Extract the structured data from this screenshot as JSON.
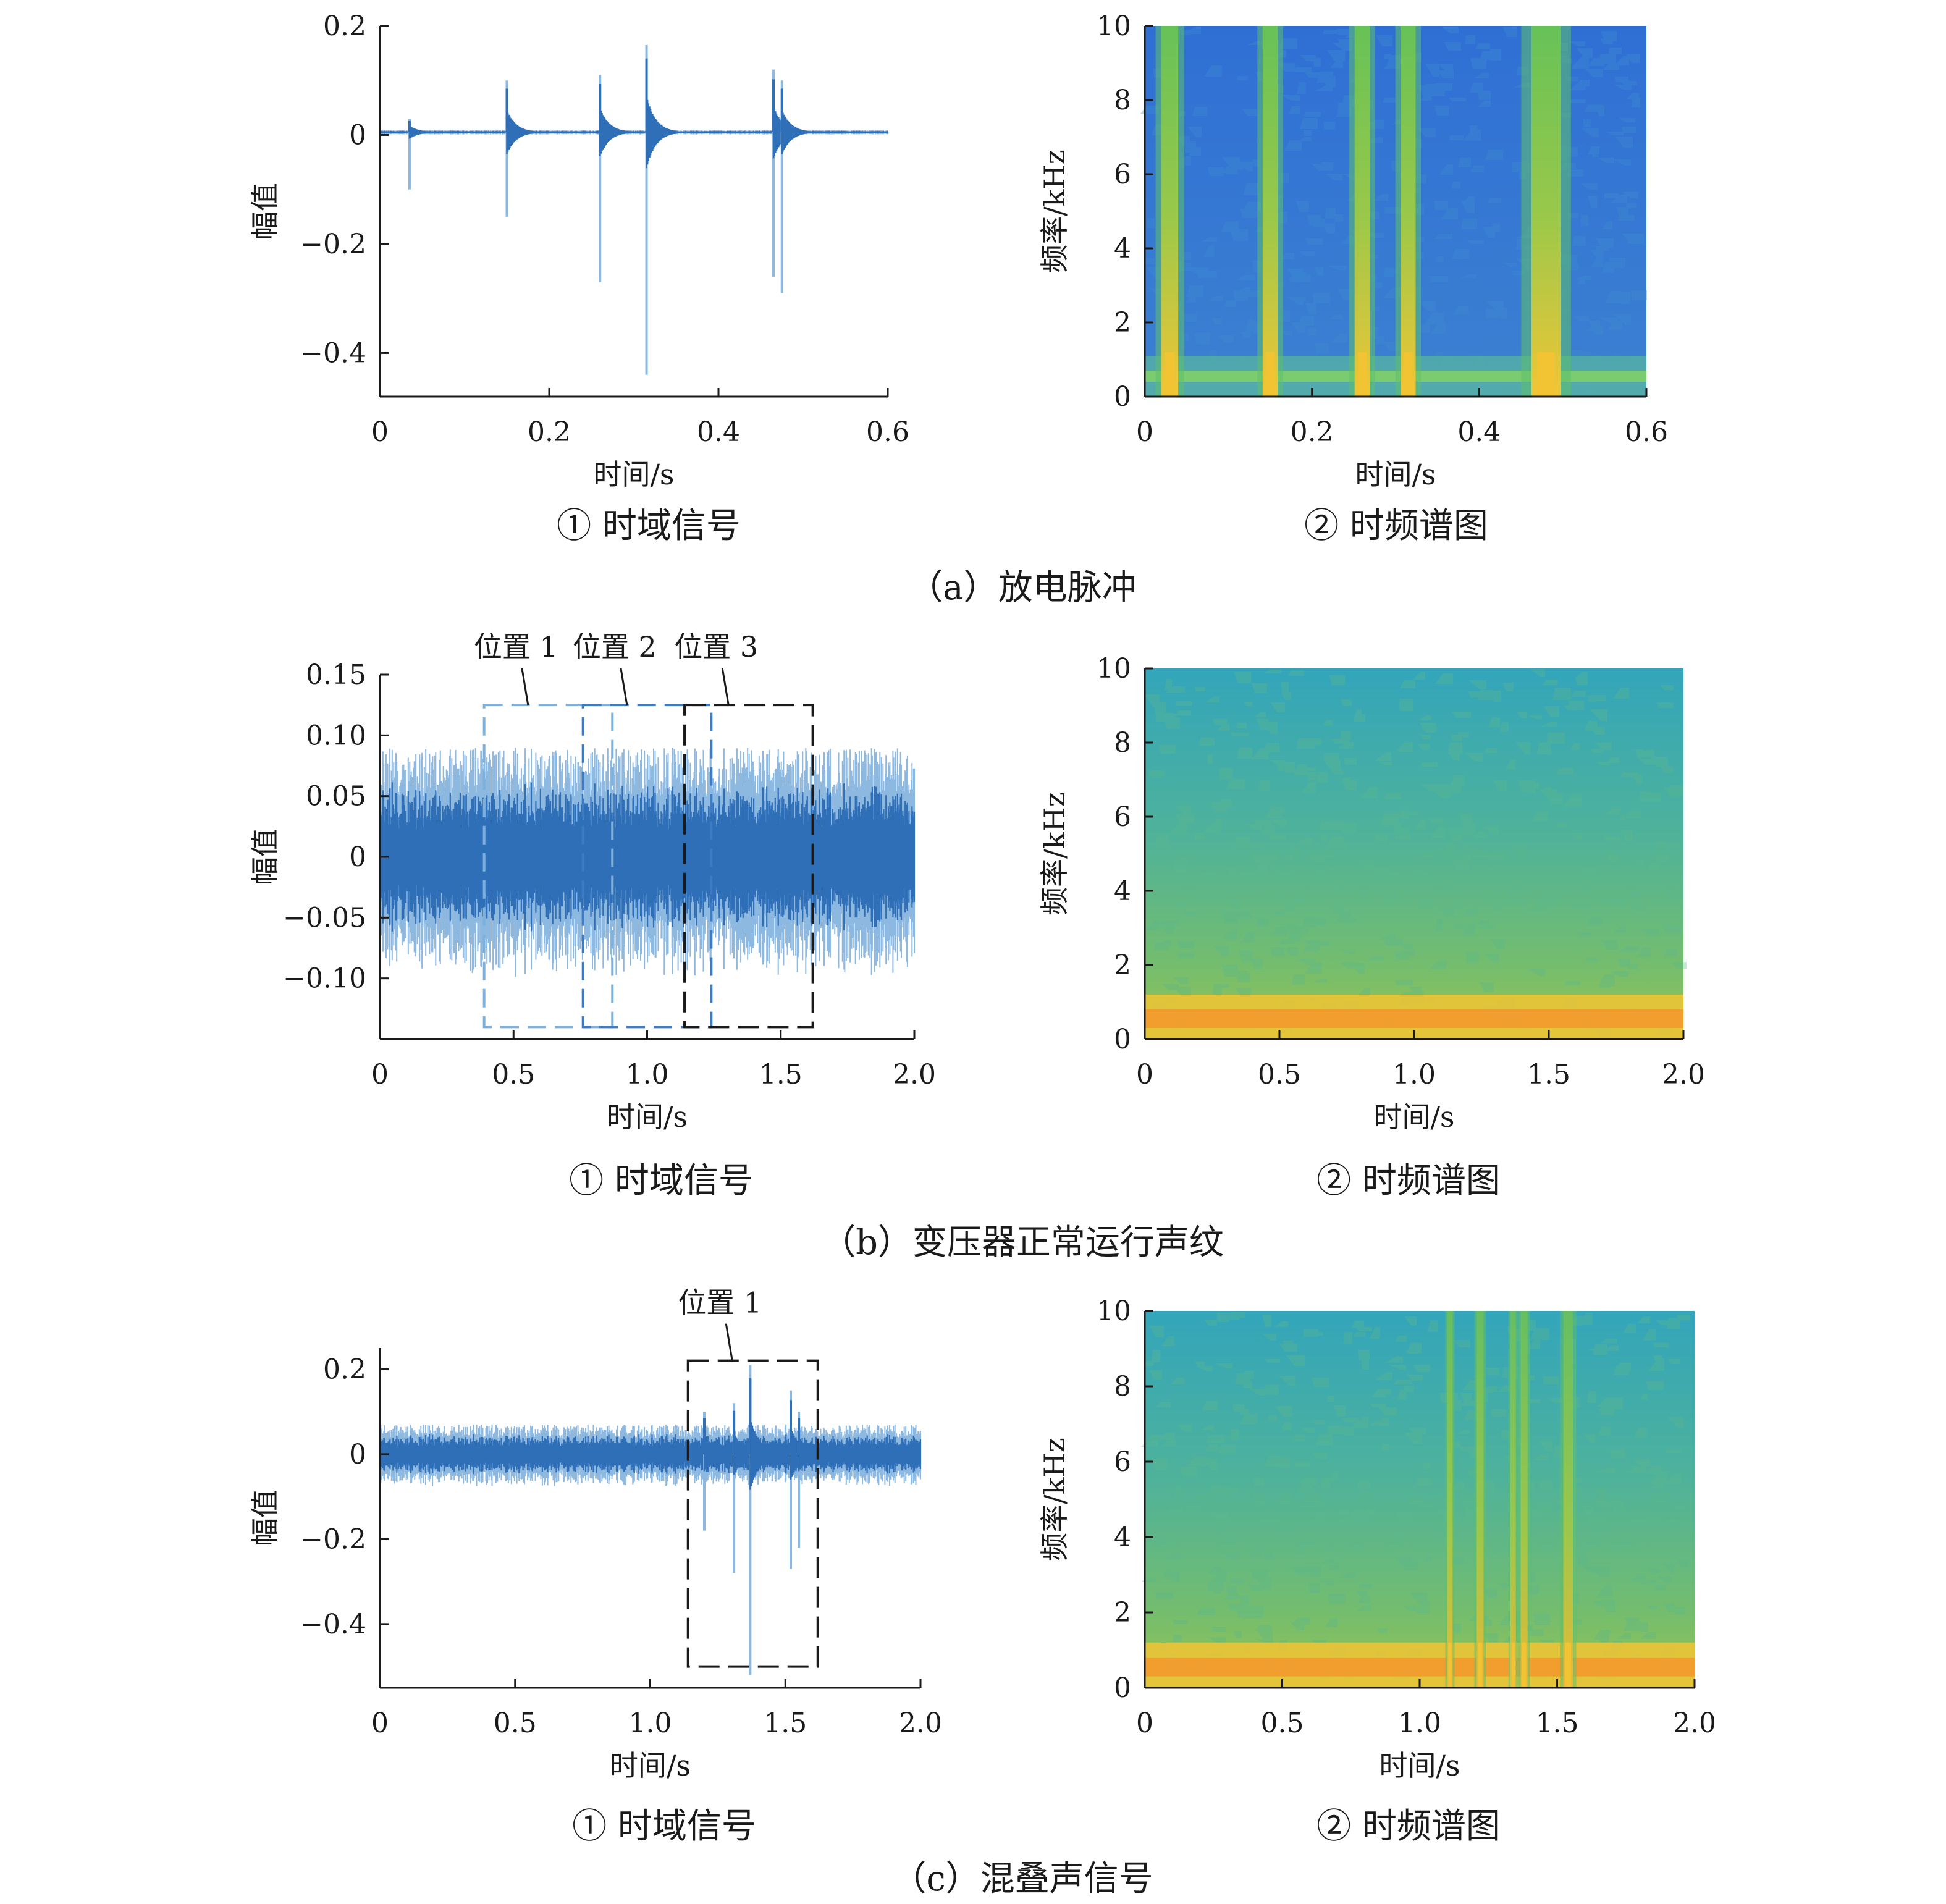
{
  "panels": [
    {
      "caption": "（a）放电脉冲",
      "time_domain": {
        "subtitle": "① 时域信号"
      },
      "spectrogram": {
        "subtitle": "② 时频谱图"
      }
    },
    {
      "caption": "（b）变压器正常运行声纹",
      "time_domain": {
        "subtitle": "① 时域信号"
      },
      "spectrogram": {
        "subtitle": "② 时频谱图"
      }
    },
    {
      "caption": "（c）混叠声信号",
      "time_domain": {
        "subtitle": "① 时域信号"
      },
      "spectrogram": {
        "subtitle": "② 时频谱图"
      }
    }
  ],
  "colors": {
    "signal_dark": "#2f6fb8",
    "signal_light": "#8db8e0",
    "spec_blue": "#2f6ed2",
    "spec_teal": "#36a9b3",
    "spec_green": "#6cc05a",
    "spec_yellow": "#f2c434",
    "spec_orange": "#f29a2e",
    "box_black": "#1a1a1a",
    "box_blue_light": "#7fb0dc",
    "box_blue": "#3d7bc4"
  },
  "chart_data": [
    {
      "id": "a1",
      "type": "line",
      "xlabel": "时间/s",
      "ylabel": "幅值",
      "xlim": [
        0,
        0.6
      ],
      "ylim": [
        -0.48,
        0.2
      ],
      "xticks": [
        0,
        0.2,
        0.4,
        0.6
      ],
      "xtick_labels": [
        "0",
        "0.2",
        "0.4",
        "0.6"
      ],
      "yticks": [
        0.2,
        0,
        -0.2,
        -0.4
      ],
      "ytick_labels": [
        "0.2",
        "0",
        "−0.2",
        "−0.4"
      ],
      "signal": {
        "x_range": [
          0,
          0.6
        ],
        "baseline": 0.005,
        "noise_amplitude": 0.004,
        "pulses": [
          {
            "t": 0.035,
            "max": 0.03,
            "min": -0.1
          },
          {
            "t": 0.15,
            "max": 0.1,
            "min": -0.15
          },
          {
            "t": 0.26,
            "max": 0.11,
            "min": -0.27
          },
          {
            "t": 0.315,
            "max": 0.165,
            "min": -0.44
          },
          {
            "t": 0.465,
            "max": 0.12,
            "min": -0.26
          },
          {
            "t": 0.475,
            "max": 0.1,
            "min": -0.29
          }
        ]
      }
    },
    {
      "id": "a2",
      "type": "heatmap",
      "xlabel": "时间/s",
      "ylabel": "频率/kHz",
      "xlim": [
        0,
        0.6
      ],
      "ylim": [
        0,
        10
      ],
      "xticks": [
        0,
        0.2,
        0.4,
        0.6
      ],
      "xtick_labels": [
        "0",
        "0.2",
        "0.4",
        "0.6"
      ],
      "yticks": [
        0,
        2,
        4,
        6,
        8,
        10
      ],
      "ytick_labels": [
        "0",
        "2",
        "4",
        "6",
        "8",
        "10"
      ],
      "background": "blue",
      "bands": [
        {
          "t": 0.03,
          "width": 0.02
        },
        {
          "t": 0.15,
          "width": 0.018
        },
        {
          "t": 0.26,
          "width": 0.018
        },
        {
          "t": 0.315,
          "width": 0.018
        },
        {
          "t": 0.48,
          "width": 0.035
        }
      ],
      "low_freq_band_khz": [
        0.4,
        0.7
      ]
    },
    {
      "id": "b1",
      "type": "line",
      "xlabel": "时间/s",
      "ylabel": "幅值",
      "xlim": [
        0,
        2.0
      ],
      "ylim": [
        -0.15,
        0.15
      ],
      "xticks": [
        0,
        0.5,
        1.0,
        1.5,
        2.0
      ],
      "xtick_labels": [
        "0",
        "0.5",
        "1.0",
        "1.5",
        "2.0"
      ],
      "yticks": [
        0.15,
        0.1,
        0.05,
        0,
        -0.05,
        -0.1
      ],
      "ytick_labels": [
        "0.15",
        "0.10",
        "0.05",
        "0",
        "−0.05",
        "−0.10"
      ],
      "signal": {
        "x_range": [
          0,
          2.0
        ],
        "baseline": 0,
        "noise_amplitude": 0.09,
        "pulses": []
      },
      "annotations": [
        {
          "label": "位置 1",
          "x": [
            0.39,
            0.87
          ],
          "y": [
            -0.14,
            0.125
          ],
          "style": "light"
        },
        {
          "label": "位置 2",
          "x": [
            0.76,
            1.24
          ],
          "y": [
            -0.14,
            0.125
          ],
          "style": "blue"
        },
        {
          "label": "位置 3",
          "x": [
            1.14,
            1.62
          ],
          "y": [
            -0.14,
            0.125
          ],
          "style": "black"
        }
      ]
    },
    {
      "id": "b2",
      "type": "heatmap",
      "xlabel": "时间/s",
      "ylabel": "频率/kHz",
      "xlim": [
        0,
        2.0
      ],
      "ylim": [
        0,
        10
      ],
      "xticks": [
        0,
        0.5,
        1.0,
        1.5,
        2.0
      ],
      "xtick_labels": [
        "0",
        "0.5",
        "1.0",
        "1.5",
        "2.0"
      ],
      "yticks": [
        0,
        2,
        4,
        6,
        8,
        10
      ],
      "ytick_labels": [
        "0",
        "2",
        "4",
        "6",
        "8",
        "10"
      ],
      "background": "teal",
      "bands": [],
      "low_freq_band_khz": [
        0.3,
        0.8
      ]
    },
    {
      "id": "c1",
      "type": "line",
      "xlabel": "时间/s",
      "ylabel": "幅值",
      "xlim": [
        0,
        2.0
      ],
      "ylim": [
        -0.55,
        0.25
      ],
      "xticks": [
        0,
        0.5,
        1.0,
        1.5,
        2.0
      ],
      "xtick_labels": [
        "0",
        "0.5",
        "1.0",
        "1.5",
        "2.0"
      ],
      "yticks": [
        0.2,
        0,
        -0.2,
        -0.4
      ],
      "ytick_labels": [
        "0.2",
        "0",
        "−0.2",
        "−0.4"
      ],
      "signal": {
        "x_range": [
          0,
          2.0
        ],
        "baseline": 0,
        "noise_amplitude": 0.07,
        "pulses": [
          {
            "t": 1.2,
            "max": 0.1,
            "min": -0.18
          },
          {
            "t": 1.31,
            "max": 0.12,
            "min": -0.28
          },
          {
            "t": 1.37,
            "max": 0.21,
            "min": -0.52
          },
          {
            "t": 1.52,
            "max": 0.15,
            "min": -0.27
          },
          {
            "t": 1.55,
            "max": 0.1,
            "min": -0.22
          }
        ]
      },
      "annotations": [
        {
          "label": "位置 1",
          "x": [
            1.14,
            1.62
          ],
          "y": [
            -0.5,
            0.22
          ],
          "style": "black"
        }
      ]
    },
    {
      "id": "c2",
      "type": "heatmap",
      "xlabel": "时间/s",
      "ylabel": "频率/kHz",
      "xlim": [
        0,
        2.0
      ],
      "ylim": [
        0,
        10
      ],
      "xticks": [
        0,
        0.5,
        1.0,
        1.5,
        2.0
      ],
      "xtick_labels": [
        "0",
        "0.5",
        "1.0",
        "1.5",
        "2.0"
      ],
      "yticks": [
        0,
        2,
        4,
        6,
        8,
        10
      ],
      "ytick_labels": [
        "0",
        "2",
        "4",
        "6",
        "8",
        "10"
      ],
      "background": "teal",
      "bands": [
        {
          "t": 1.11,
          "width": 0.02
        },
        {
          "t": 1.22,
          "width": 0.025
        },
        {
          "t": 1.34,
          "width": 0.02
        },
        {
          "t": 1.38,
          "width": 0.025
        },
        {
          "t": 1.54,
          "width": 0.035
        }
      ],
      "low_freq_band_khz": [
        0.3,
        0.8
      ]
    }
  ]
}
